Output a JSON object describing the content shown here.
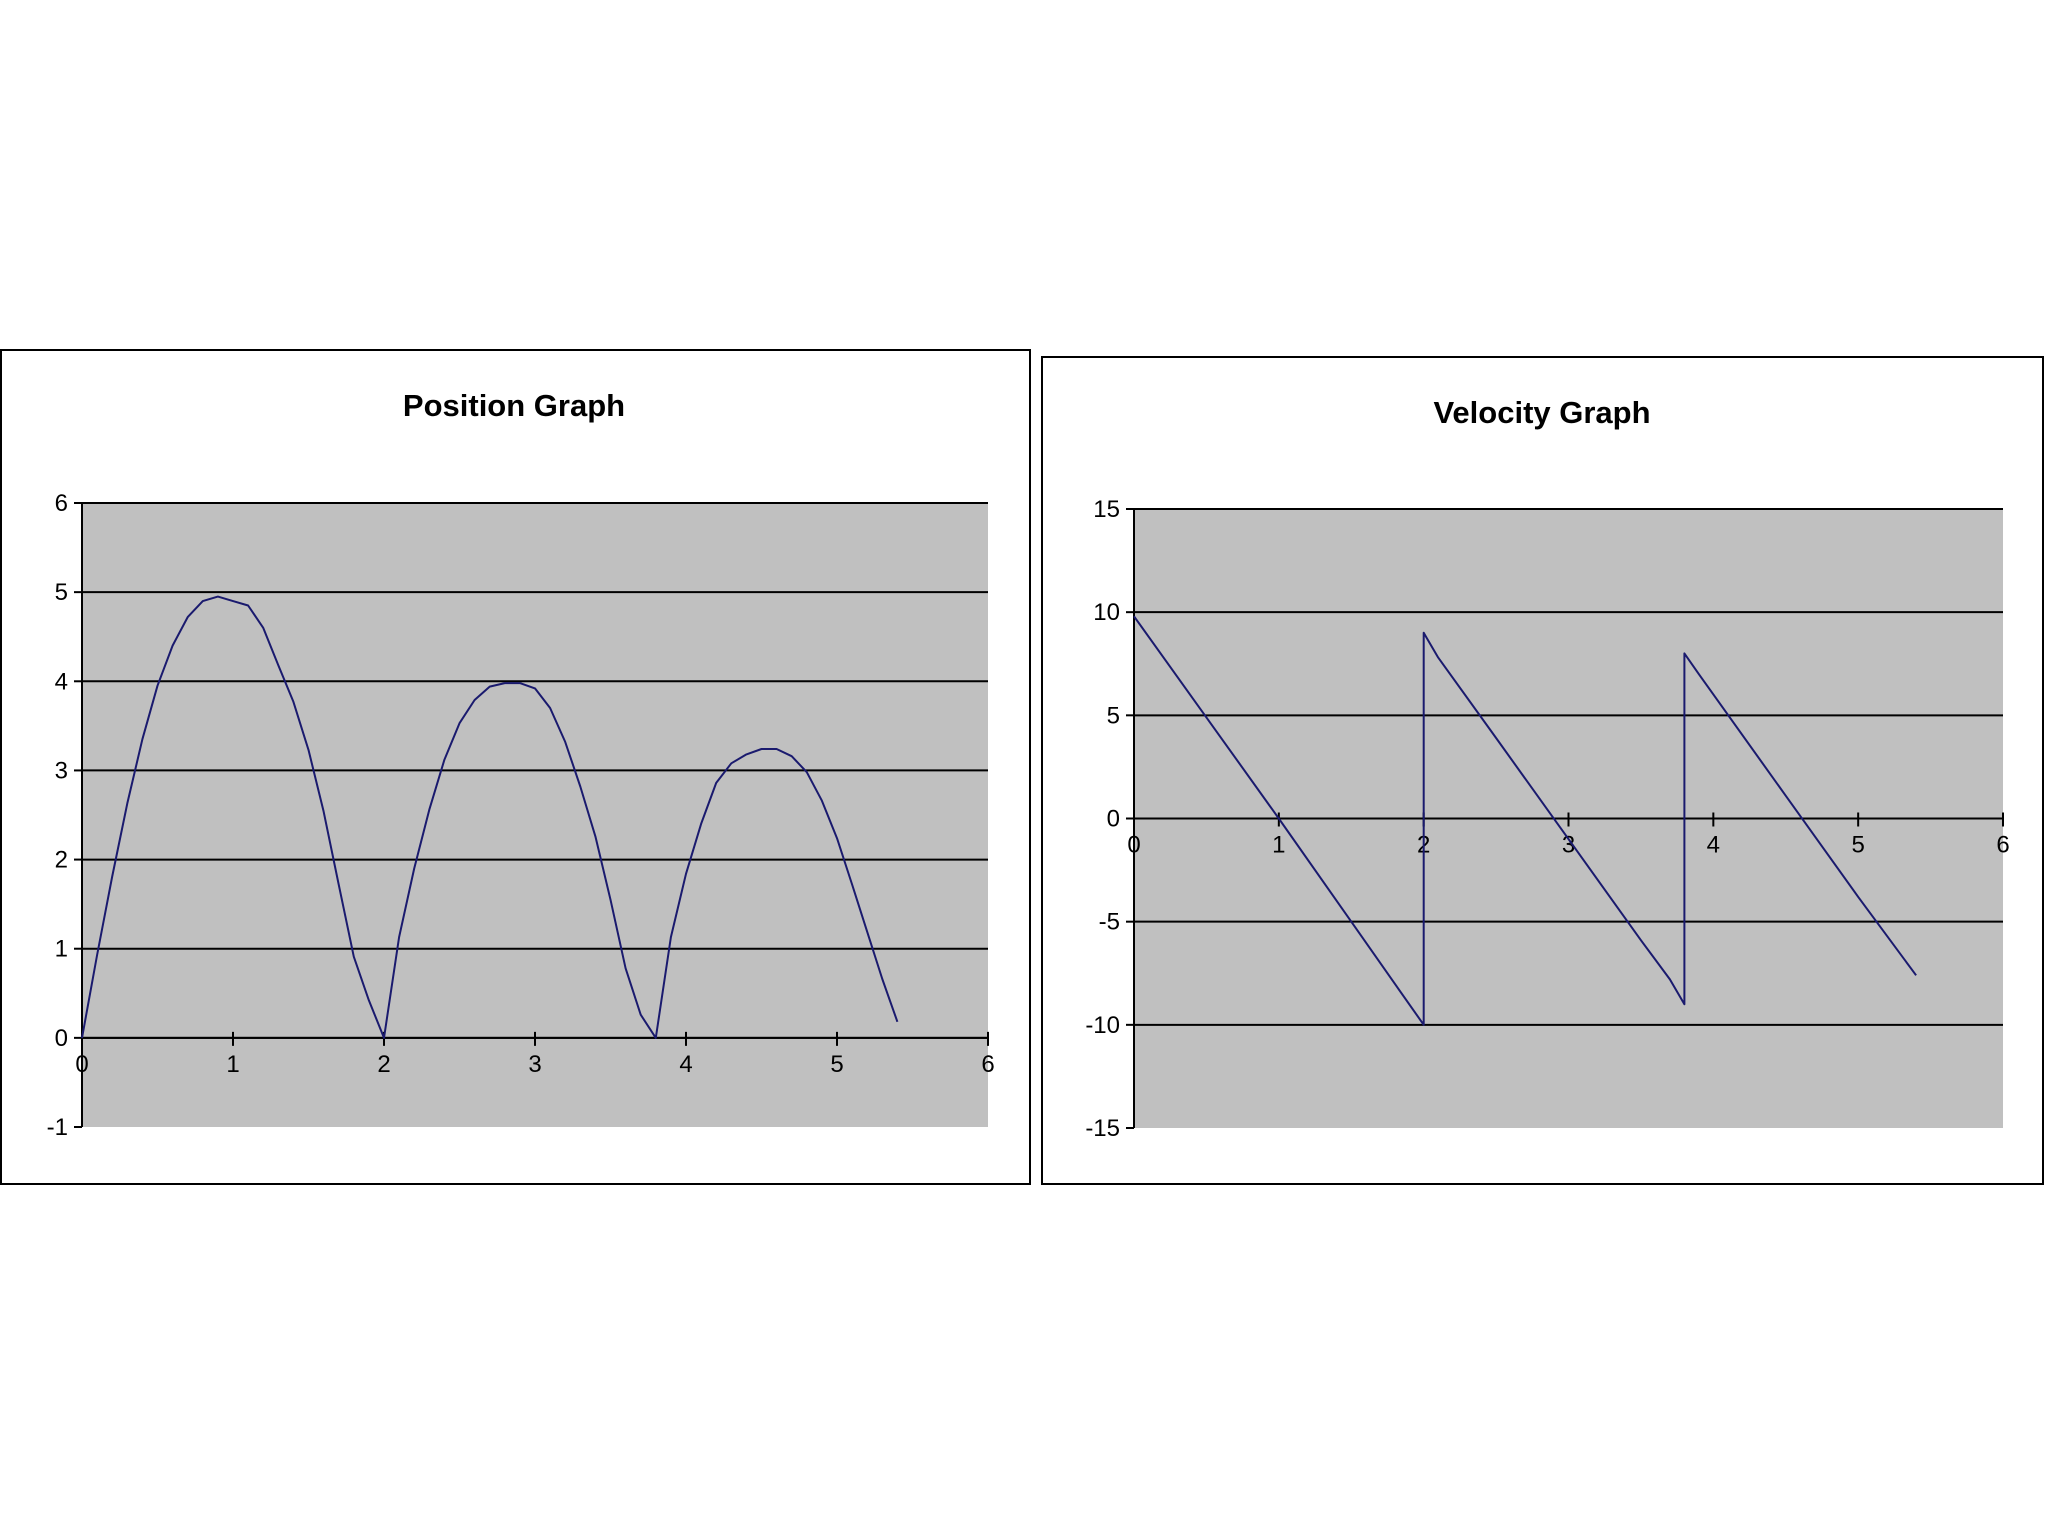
{
  "colors": {
    "plot_area": "#c0c0c0",
    "gridline": "#000000",
    "series": "#1a1a6e",
    "frame": "#000000"
  },
  "chart_data": [
    {
      "type": "line",
      "title": "Position Graph",
      "xlabel": "",
      "ylabel": "",
      "xlim": [
        0,
        6
      ],
      "ylim": [
        -1,
        6
      ],
      "x_ticks": [
        0,
        1,
        2,
        3,
        4,
        5,
        6
      ],
      "y_ticks": [
        -1,
        0,
        1,
        2,
        3,
        4,
        5,
        6
      ],
      "grid": "horizontal",
      "legend": "none",
      "series": [
        {
          "x": [
            0,
            0.1,
            0.2,
            0.3,
            0.4,
            0.5,
            0.6,
            0.7,
            0.8,
            0.9,
            1.0,
            1.1,
            1.2,
            1.3,
            1.4,
            1.5,
            1.6,
            1.7,
            1.8,
            1.9,
            2.0,
            2.1,
            2.2,
            2.3,
            2.4,
            2.5,
            2.6,
            2.7,
            2.8,
            2.9,
            3.0,
            3.1,
            3.2,
            3.3,
            3.4,
            3.5,
            3.6,
            3.7,
            3.8,
            3.9,
            4.0,
            4.1,
            4.2,
            4.3,
            4.4,
            4.5,
            4.6,
            4.7,
            4.8,
            4.9,
            5.0,
            5.1,
            5.2,
            5.3,
            5.4
          ],
          "y": [
            0,
            0.93,
            1.81,
            2.63,
            3.35,
            3.95,
            4.4,
            4.72,
            4.9,
            4.95,
            4.9,
            4.85,
            4.6,
            4.18,
            3.77,
            3.23,
            2.54,
            1.72,
            0.91,
            0.42,
            0,
            1.13,
            1.9,
            2.56,
            3.12,
            3.53,
            3.79,
            3.94,
            3.98,
            3.98,
            3.92,
            3.7,
            3.32,
            2.82,
            2.26,
            1.55,
            0.78,
            0.26,
            0,
            1.13,
            1.84,
            2.4,
            2.86,
            3.08,
            3.18,
            3.24,
            3.24,
            3.16,
            2.98,
            2.66,
            2.24,
            1.72,
            1.19,
            0.66,
            0.18
          ]
        }
      ]
    },
    {
      "type": "line",
      "title": "Velocity Graph",
      "xlabel": "",
      "ylabel": "",
      "xlim": [
        0,
        6
      ],
      "ylim": [
        -15,
        15
      ],
      "x_ticks": [
        0,
        1,
        2,
        3,
        4,
        5,
        6
      ],
      "y_ticks": [
        -15,
        -10,
        -5,
        0,
        5,
        10,
        15
      ],
      "grid": "horizontal",
      "legend": "none",
      "series": [
        {
          "x": [
            0,
            0.5,
            1.0,
            1.5,
            1.8,
            2.0,
            2.0,
            2.1,
            2.5,
            3.0,
            3.5,
            3.7,
            3.8,
            3.8,
            3.9,
            4.5,
            5.0,
            5.4
          ],
          "y": [
            9.8,
            4.9,
            0,
            -5.0,
            -8.0,
            -10.0,
            9.0,
            7.8,
            3.9,
            -1.0,
            -5.9,
            -7.8,
            -9.0,
            8.0,
            7.0,
            1.1,
            -3.8,
            -7.6
          ]
        }
      ]
    }
  ]
}
